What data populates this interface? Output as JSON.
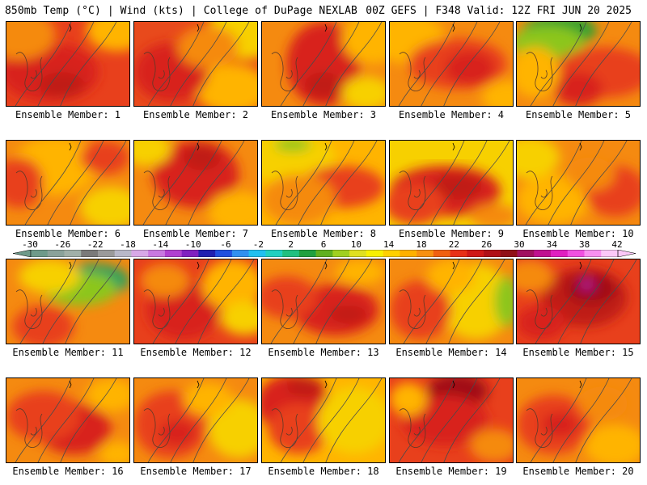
{
  "header": {
    "title_left": "850mb Temp (°C) | Wind (kts) | College of DuPage NEXLAB",
    "title_right": "00Z GEFS | F348 Valid: 12Z FRI JUN 20 2025"
  },
  "member_prefix": "Ensemble Member:",
  "panels": [
    {
      "member": 1,
      "caption": "Ensemble Member: 1",
      "base": "#e8401c",
      "blobs": [
        [
          "#d8201a",
          0.35,
          0.6,
          0.4,
          0.35
        ],
        [
          "#ffb400",
          0.9,
          0.1,
          0.25,
          0.25
        ],
        [
          "#f58a10",
          0.1,
          0.15,
          0.3,
          0.3
        ],
        [
          "#c01a18",
          0.45,
          0.75,
          0.18,
          0.15
        ]
      ]
    },
    {
      "member": 2,
      "caption": "Ensemble Member: 2",
      "base": "#e84a1c",
      "blobs": [
        [
          "#f7d000",
          0.9,
          0.1,
          0.3,
          0.35
        ],
        [
          "#ffb400",
          0.8,
          0.8,
          0.3,
          0.3
        ],
        [
          "#d8201a",
          0.3,
          0.6,
          0.3,
          0.35
        ],
        [
          "#f58a10",
          0.6,
          0.3,
          0.25,
          0.25
        ]
      ]
    },
    {
      "member": 3,
      "caption": "Ensemble Member: 3",
      "base": "#f58a10",
      "blobs": [
        [
          "#d8201a",
          0.5,
          0.5,
          0.3,
          0.5
        ],
        [
          "#c01a18",
          0.5,
          0.75,
          0.15,
          0.15
        ],
        [
          "#ffb400",
          0.9,
          0.2,
          0.25,
          0.3
        ],
        [
          "#f7d000",
          0.85,
          0.85,
          0.2,
          0.2
        ]
      ]
    },
    {
      "member": 4,
      "caption": "Ensemble Member: 4",
      "base": "#f58a10",
      "blobs": [
        [
          "#ffb400",
          0.15,
          0.2,
          0.3,
          0.3
        ],
        [
          "#e8401c",
          0.55,
          0.5,
          0.4,
          0.3
        ],
        [
          "#d8201a",
          0.65,
          0.55,
          0.2,
          0.2
        ],
        [
          "#ffb400",
          0.95,
          0.9,
          0.2,
          0.2
        ]
      ]
    },
    {
      "member": 5,
      "caption": "Ensemble Member: 5",
      "base": "#f58a10",
      "blobs": [
        [
          "#30a030",
          0.35,
          0.1,
          0.3,
          0.2
        ],
        [
          "#8cc61e",
          0.25,
          0.25,
          0.3,
          0.2
        ],
        [
          "#e8401c",
          0.7,
          0.6,
          0.4,
          0.3
        ],
        [
          "#d8201a",
          0.5,
          0.8,
          0.2,
          0.2
        ],
        [
          "#ffb400",
          0.15,
          0.6,
          0.2,
          0.3
        ]
      ]
    },
    {
      "member": 6,
      "caption": "Ensemble Member: 6",
      "base": "#f58a10",
      "blobs": [
        [
          "#ffb400",
          0.4,
          0.3,
          0.35,
          0.35
        ],
        [
          "#e8401c",
          0.1,
          0.5,
          0.2,
          0.3
        ],
        [
          "#f7d000",
          0.85,
          0.8,
          0.25,
          0.25
        ],
        [
          "#e8401c",
          0.8,
          0.2,
          0.2,
          0.2
        ]
      ]
    },
    {
      "member": 7,
      "caption": "Ensemble Member: 7",
      "base": "#f58a10",
      "blobs": [
        [
          "#d8201a",
          0.5,
          0.4,
          0.35,
          0.4
        ],
        [
          "#c01a18",
          0.55,
          0.2,
          0.15,
          0.15
        ],
        [
          "#f7d000",
          0.1,
          0.1,
          0.2,
          0.2
        ],
        [
          "#ffb400",
          0.85,
          0.85,
          0.25,
          0.25
        ]
      ]
    },
    {
      "member": 8,
      "caption": "Ensemble Member: 8",
      "base": "#ffb400",
      "blobs": [
        [
          "#f7d000",
          0.2,
          0.2,
          0.4,
          0.3
        ],
        [
          "#e8401c",
          0.65,
          0.55,
          0.35,
          0.25
        ],
        [
          "#f58a10",
          0.3,
          0.7,
          0.3,
          0.3
        ],
        [
          "#8cc61e",
          0.25,
          0.05,
          0.15,
          0.08
        ]
      ]
    },
    {
      "member": 9,
      "caption": "Ensemble Member: 9",
      "base": "#f7d000",
      "blobs": [
        [
          "#d8201a",
          0.45,
          0.6,
          0.45,
          0.3
        ],
        [
          "#c01a18",
          0.55,
          0.55,
          0.2,
          0.15
        ],
        [
          "#e8401c",
          0.2,
          0.75,
          0.25,
          0.25
        ],
        [
          "#f58a10",
          0.85,
          0.9,
          0.2,
          0.15
        ]
      ]
    },
    {
      "member": 10,
      "caption": "Ensemble Member: 10",
      "base": "#f58a10",
      "blobs": [
        [
          "#f7d000",
          0.1,
          0.2,
          0.25,
          0.25
        ],
        [
          "#ffb400",
          0.3,
          0.7,
          0.3,
          0.3
        ],
        [
          "#e8401c",
          0.8,
          0.6,
          0.25,
          0.3
        ],
        [
          "#f58a10",
          0.6,
          0.4,
          0.2,
          0.2
        ]
      ]
    },
    {
      "member": 11,
      "caption": "Ensemble Member: 11",
      "base": "#f58a10",
      "blobs": [
        [
          "#20a060",
          0.7,
          0.25,
          0.3,
          0.2
        ],
        [
          "#8cc61e",
          0.6,
          0.35,
          0.3,
          0.2
        ],
        [
          "#f7d000",
          0.35,
          0.2,
          0.25,
          0.2
        ],
        [
          "#e8401c",
          0.3,
          0.8,
          0.25,
          0.25
        ]
      ]
    },
    {
      "member": 12,
      "caption": "Ensemble Member: 12",
      "base": "#e8401c",
      "blobs": [
        [
          "#d8201a",
          0.4,
          0.6,
          0.3,
          0.35
        ],
        [
          "#ffb400",
          0.8,
          0.3,
          0.25,
          0.3
        ],
        [
          "#f7d000",
          0.9,
          0.7,
          0.2,
          0.2
        ],
        [
          "#f58a10",
          0.25,
          0.25,
          0.2,
          0.2
        ]
      ]
    },
    {
      "member": 13,
      "caption": "Ensemble Member: 13",
      "base": "#f58a10",
      "blobs": [
        [
          "#d8201a",
          0.6,
          0.6,
          0.35,
          0.3
        ],
        [
          "#e8401c",
          0.2,
          0.45,
          0.25,
          0.25
        ],
        [
          "#ffb400",
          0.8,
          0.15,
          0.2,
          0.15
        ],
        [
          "#c01a18",
          0.7,
          0.65,
          0.15,
          0.1
        ]
      ]
    },
    {
      "member": 14,
      "caption": "Ensemble Member: 14",
      "base": "#f58a10",
      "blobs": [
        [
          "#f7d000",
          0.7,
          0.5,
          0.3,
          0.45
        ],
        [
          "#8cc61e",
          0.95,
          0.5,
          0.1,
          0.3
        ],
        [
          "#e8401c",
          0.25,
          0.6,
          0.25,
          0.35
        ],
        [
          "#ffb400",
          0.5,
          0.2,
          0.2,
          0.2
        ]
      ]
    },
    {
      "member": 15,
      "caption": "Ensemble Member: 15",
      "base": "#e8401c",
      "blobs": [
        [
          "#c01a18",
          0.55,
          0.45,
          0.35,
          0.35
        ],
        [
          "#a01018",
          0.6,
          0.35,
          0.2,
          0.18
        ],
        [
          "#b0148c",
          0.57,
          0.3,
          0.06,
          0.07
        ],
        [
          "#f58a10",
          0.1,
          0.2,
          0.2,
          0.2
        ],
        [
          "#d8201a",
          0.2,
          0.75,
          0.2,
          0.2
        ]
      ]
    },
    {
      "member": 16,
      "caption": "Ensemble Member: 16",
      "base": "#f58a10",
      "blobs": [
        [
          "#d8201a",
          0.55,
          0.6,
          0.3,
          0.3
        ],
        [
          "#e8401c",
          0.3,
          0.45,
          0.3,
          0.3
        ],
        [
          "#ffb400",
          0.85,
          0.2,
          0.2,
          0.2
        ],
        [
          "#ffb400",
          0.9,
          0.9,
          0.15,
          0.15
        ]
      ]
    },
    {
      "member": 17,
      "caption": "Ensemble Member: 17",
      "base": "#f58a10",
      "blobs": [
        [
          "#e8401c",
          0.3,
          0.55,
          0.3,
          0.4
        ],
        [
          "#f7d000",
          0.85,
          0.6,
          0.25,
          0.35
        ],
        [
          "#ffb400",
          0.6,
          0.25,
          0.2,
          0.2
        ],
        [
          "#d8201a",
          0.35,
          0.65,
          0.15,
          0.15
        ]
      ]
    },
    {
      "member": 18,
      "caption": "Ensemble Member: 18",
      "base": "#ffb400",
      "blobs": [
        [
          "#d8201a",
          0.25,
          0.3,
          0.3,
          0.35
        ],
        [
          "#e8401c",
          0.3,
          0.6,
          0.25,
          0.3
        ],
        [
          "#f7d000",
          0.75,
          0.5,
          0.3,
          0.4
        ],
        [
          "#c01a18",
          0.35,
          0.1,
          0.15,
          0.12
        ]
      ]
    },
    {
      "member": 19,
      "caption": "Ensemble Member: 19",
      "base": "#e8401c",
      "blobs": [
        [
          "#a01018",
          0.55,
          0.15,
          0.25,
          0.2
        ],
        [
          "#d8201a",
          0.45,
          0.5,
          0.35,
          0.3
        ],
        [
          "#ffb400",
          0.15,
          0.25,
          0.15,
          0.2
        ],
        [
          "#f58a10",
          0.85,
          0.8,
          0.2,
          0.2
        ]
      ]
    },
    {
      "member": 20,
      "caption": "Ensemble Member: 20",
      "base": "#f58a10",
      "blobs": [
        [
          "#e8401c",
          0.3,
          0.55,
          0.3,
          0.35
        ],
        [
          "#d8201a",
          0.35,
          0.55,
          0.15,
          0.15
        ],
        [
          "#ffb400",
          0.8,
          0.8,
          0.25,
          0.25
        ],
        [
          "#f58a10",
          0.7,
          0.3,
          0.2,
          0.2
        ]
      ]
    }
  ],
  "colorbar": {
    "labels": [
      "-30",
      "-26",
      "-22",
      "-18",
      "-14",
      "-10",
      "-6",
      "-2",
      "2",
      "6",
      "10",
      "14",
      "18",
      "22",
      "26",
      "30",
      "34",
      "38",
      "42"
    ],
    "colors": [
      "#6e9a8a",
      "#8aa29a",
      "#a0b0a8",
      "#7a7a7a",
      "#9a9a9a",
      "#b8b8c8",
      "#d8a8e8",
      "#c878e0",
      "#b040d0",
      "#8020c0",
      "#2020b0",
      "#2050e0",
      "#3090f0",
      "#20c0f0",
      "#20d0c0",
      "#20c080",
      "#20a040",
      "#60b020",
      "#a0d020",
      "#e0e020",
      "#f8f000",
      "#ffd000",
      "#ffb000",
      "#f89010",
      "#f06010",
      "#e83018",
      "#d01818",
      "#b01018",
      "#901018",
      "#a01060",
      "#c01090",
      "#e020c0",
      "#f050e0",
      "#f890f0",
      "#fcc8f8"
    ]
  }
}
